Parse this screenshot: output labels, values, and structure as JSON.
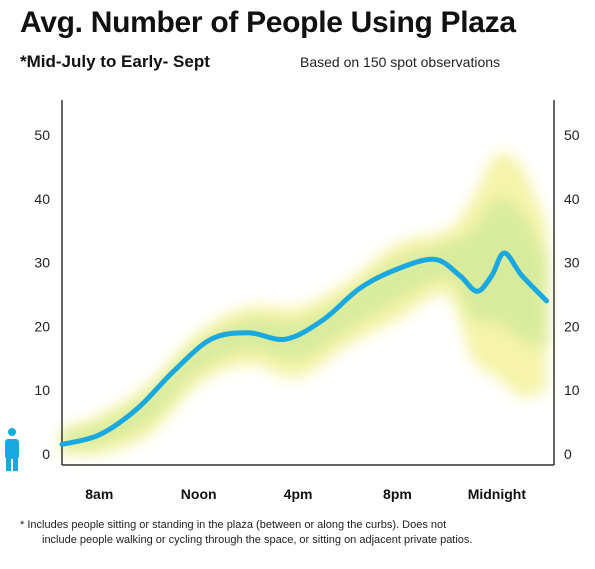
{
  "title": "Avg. Number of People Using Plaza",
  "subtitle": "*Mid-July to Early- Sept",
  "note": "Based on 150 spot observations",
  "footnote": {
    "line1": "* Includes people sitting or standing in the plaza (between or along the curbs). Does not",
    "line2": "include people walking or cycling through the space, or sitting on adjacent private patios."
  },
  "colors": {
    "line": "#1aa8e0",
    "band_yellow": "#f4f3a0",
    "band_green": "#cfe89a",
    "axis": "#333333",
    "person_icon": "#1aa8e0"
  },
  "icons": {
    "y_axis_marker": "person-icon"
  },
  "chart_data": {
    "type": "line",
    "title": "Avg. Number of People Using Plaza",
    "xlabel": "",
    "ylabel": "",
    "x_ticks": [
      "8am",
      "Noon",
      "4pm",
      "8pm",
      "Midnight"
    ],
    "x_tick_hours": [
      8,
      12,
      16,
      20,
      24
    ],
    "xlim": [
      6.5,
      26.3
    ],
    "ylim": [
      0,
      55
    ],
    "y_ticks": [
      0,
      10,
      20,
      30,
      40,
      50
    ],
    "y_axis_both_sides": true,
    "grid": false,
    "series": [
      {
        "x": [
          6.5,
          8,
          9.5,
          11,
          12.5,
          14,
          15.5,
          17,
          18.5,
          20,
          21.5,
          22.5,
          23.2,
          23.8,
          24.3,
          25,
          26
        ],
        "y": [
          1.5,
          3,
          7,
          13,
          18,
          19,
          18,
          21,
          26,
          29,
          30.5,
          28,
          25.5,
          28,
          31.5,
          28,
          24
        ]
      }
    ],
    "variability_band": {
      "x": [
        6.5,
        8,
        10,
        12,
        14,
        16,
        18,
        20,
        22,
        23,
        24,
        25,
        26
      ],
      "upper": [
        4,
        6,
        11,
        19,
        23,
        23,
        27,
        33,
        35,
        40,
        47,
        45,
        36
      ],
      "lower": [
        0,
        0,
        3,
        11,
        14,
        12,
        17,
        21,
        25,
        15,
        12,
        9,
        10
      ]
    }
  }
}
